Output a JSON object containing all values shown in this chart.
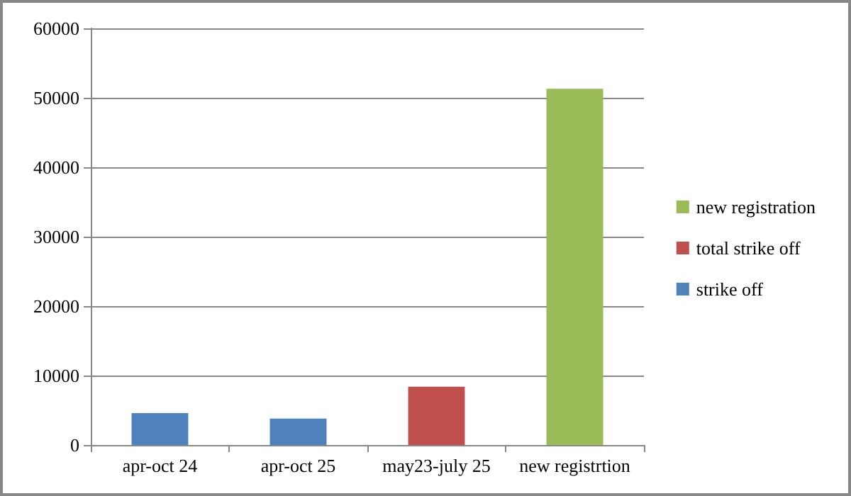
{
  "chart_data": {
    "type": "bar",
    "stacked": true,
    "categories": [
      "apr-oct 24",
      "apr-oct 25",
      "may23-july 25",
      "new registrtion"
    ],
    "series": [
      {
        "name": "strike off",
        "color": "#4f81bd",
        "values": [
          4600,
          3800,
          null,
          null
        ]
      },
      {
        "name": "total strike off",
        "color": "#c0504d",
        "values": [
          null,
          null,
          8400,
          null
        ]
      },
      {
        "name": "new registration",
        "color": "#9bbb59",
        "values": [
          null,
          null,
          null,
          51300
        ]
      }
    ],
    "ylim": [
      0,
      60000
    ],
    "yticks": [
      0,
      10000,
      20000,
      30000,
      40000,
      50000,
      60000
    ],
    "grid": "y",
    "legend": "right"
  }
}
